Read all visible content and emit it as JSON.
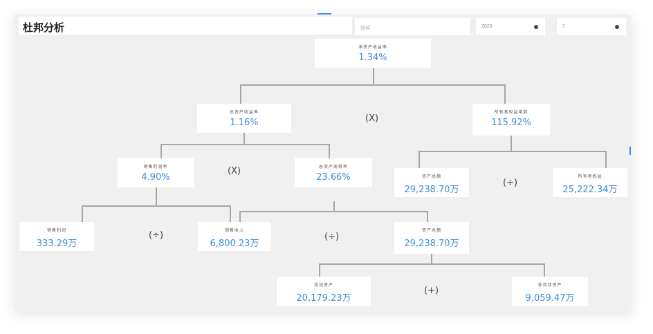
{
  "title": "杜邦分析",
  "filters": {
    "company": "分公",
    "year": "2020",
    "month": "7"
  },
  "nodes": {
    "roe": {
      "label": "净资产收益率",
      "value": "1.34%"
    },
    "roa": {
      "label": "总资产收益率",
      "value": "1.16%"
    },
    "equity_multiplier": {
      "label": "所有者权益乘数",
      "value": "115.92%"
    },
    "net_margin": {
      "label": "销售利润率",
      "value": "4.90%"
    },
    "asset_turnover": {
      "label": "总资产周转率",
      "value": "23.66%"
    },
    "assets_a": {
      "label": "资产总额",
      "value": "29,238.70万"
    },
    "owner_equity": {
      "label": "所有者权益",
      "value": "25,222.34万"
    },
    "net_profit": {
      "label": "销售利润",
      "value": "333.29万"
    },
    "sales_revenue": {
      "label": "销售收入",
      "value": "6,800.23万"
    },
    "assets_b": {
      "label": "资产总额",
      "value": "29,238.70万"
    },
    "current_assets": {
      "label": "流动资产",
      "value": "20,179.23万"
    },
    "noncurrent_assets": {
      "label": "非流动资产",
      "value": "9,059.47万"
    }
  },
  "operators": {
    "multiply_1": "(X)",
    "multiply_2": "(X)",
    "divide_1": "(÷)",
    "divide_2": "(÷)",
    "divide_3": "(÷)",
    "plus_1": "(+)"
  },
  "icons": {
    "select_arrow": "dropdown-dot-icon"
  }
}
